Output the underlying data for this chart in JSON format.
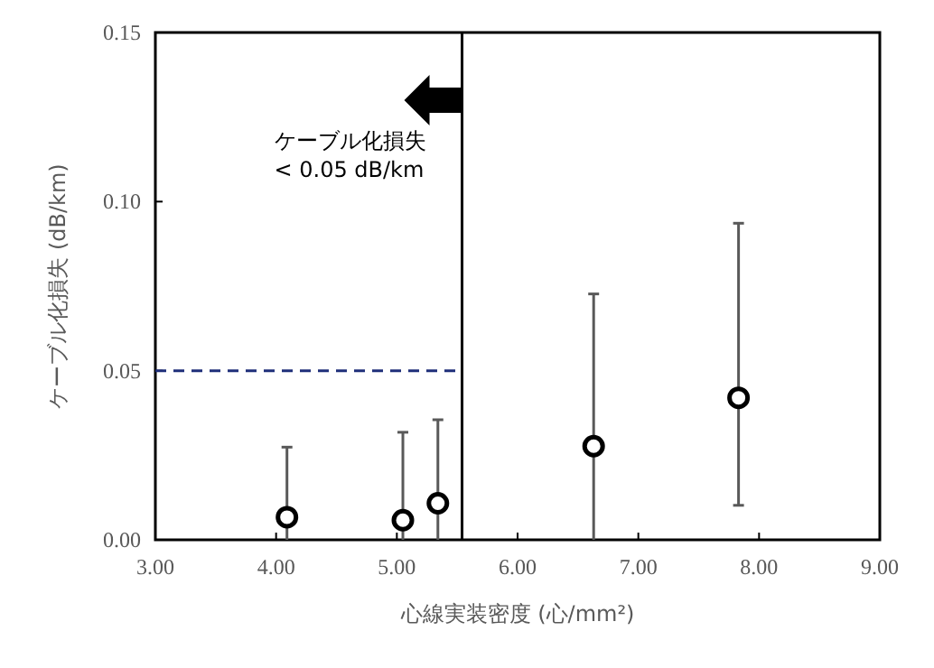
{
  "chart_data": {
    "type": "scatter",
    "xlabel": "心線実装密度 (心/mm²)",
    "ylabel": "ケーブル化損失 (dB/km)",
    "x": [
      4.09,
      5.05,
      5.34,
      6.63,
      7.83
    ],
    "values": [
      0.0067,
      0.0058,
      0.0108,
      0.0277,
      0.042
    ],
    "errors": [
      [
        0,
        0.0274
      ],
      [
        0,
        0.0318
      ],
      [
        0,
        0.0355
      ],
      [
        0,
        0.0727
      ],
      [
        0.0102,
        0.0936
      ]
    ],
    "color": "#000000",
    "marker": "circle",
    "grid": false,
    "xlim": [
      3,
      9
    ],
    "xticks": [
      {
        "value": 3,
        "label": "3.00"
      },
      {
        "value": 4,
        "label": "4.00"
      },
      {
        "value": 5,
        "label": "5.00"
      },
      {
        "value": 6,
        "label": "6.00"
      },
      {
        "value": 7,
        "label": "7.00"
      },
      {
        "value": 8,
        "label": "8.00"
      },
      {
        "value": 9,
        "label": "9.00"
      }
    ],
    "ylim": [
      0,
      0.15
    ],
    "yticks": [
      {
        "value": 0,
        "label": "0.00"
      },
      {
        "value": 0.05,
        "label": "0.05"
      },
      {
        "value": 0.1,
        "label": "0.10"
      },
      {
        "value": 0.15,
        "label": "0.15"
      }
    ],
    "ref_lines": [
      {
        "axis": "x",
        "value": 5.54,
        "color": "#000000",
        "line_style": "solid"
      },
      {
        "axis": "y",
        "value": 0.05,
        "color": "#1f2f7a",
        "line_style": "dashed"
      }
    ],
    "annotations": [
      "ケーブル化損失\n< 0.05 dB/km"
    ]
  }
}
